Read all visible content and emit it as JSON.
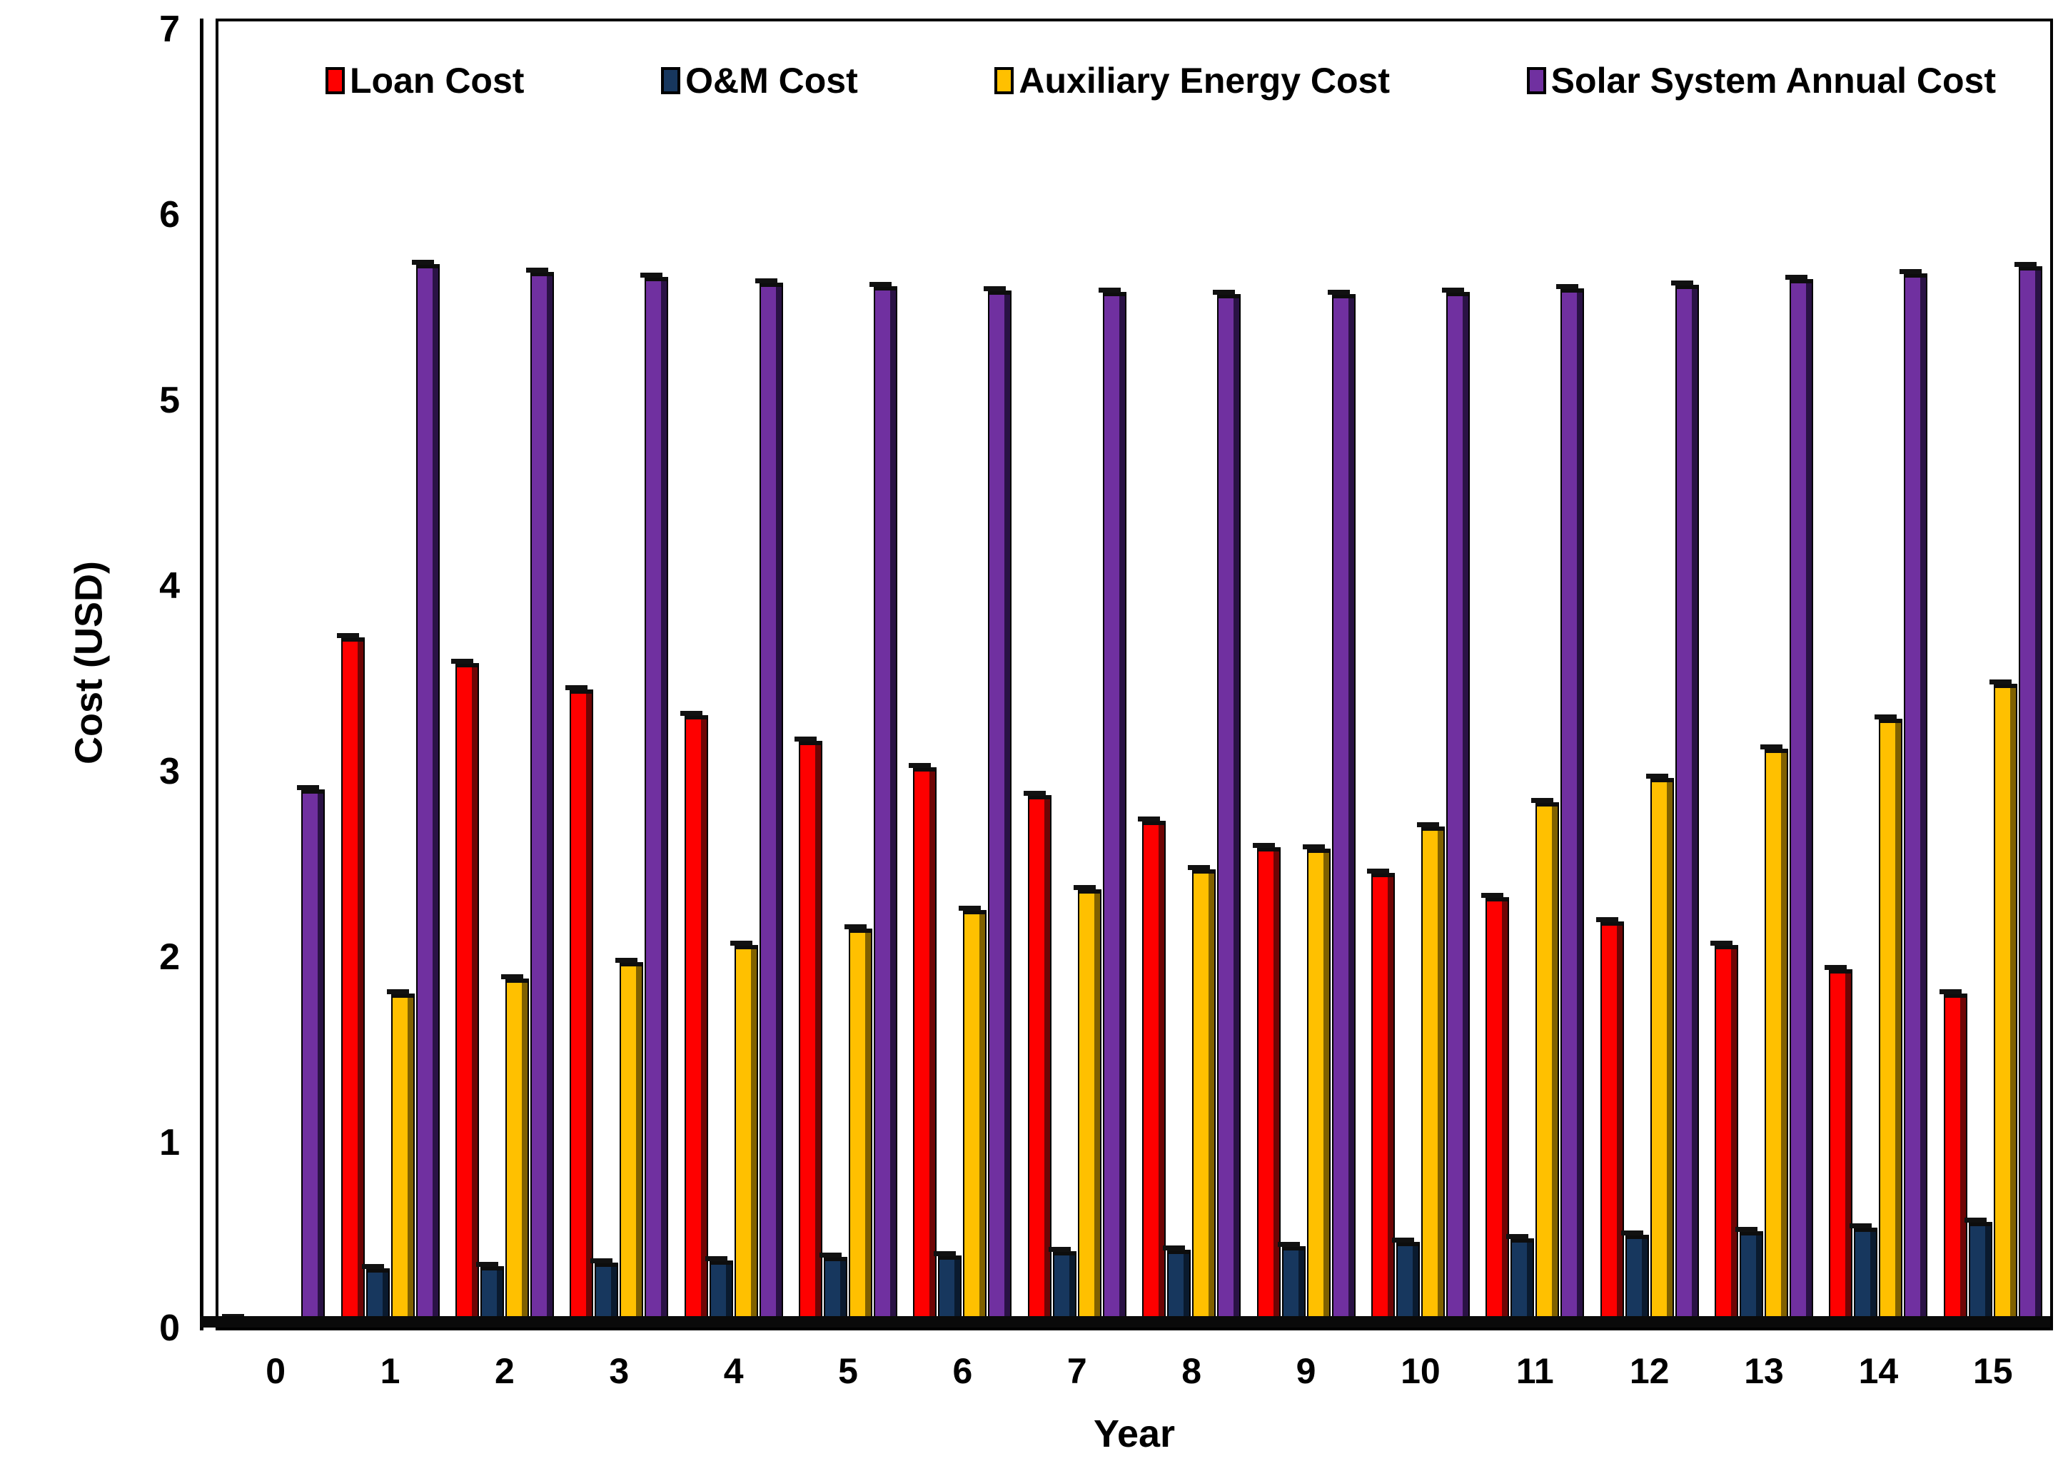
{
  "chart_data": {
    "type": "bar",
    "title": "",
    "xlabel": "Year",
    "ylabel": "Cost (USD)",
    "ylim": [
      0,
      7
    ],
    "yticks": [
      0,
      1,
      2,
      3,
      4,
      5,
      6,
      7
    ],
    "grid": "off",
    "legend_position": "top-inside",
    "categories": [
      "0",
      "1",
      "2",
      "3",
      "4",
      "5",
      "6",
      "7",
      "8",
      "9",
      "10",
      "11",
      "12",
      "13",
      "14",
      "15"
    ],
    "series": [
      {
        "name": "Loan Cost",
        "color": "#fe0000",
        "dark_side_color": "#6e0505",
        "values": [
          0.05,
          3.72,
          3.58,
          3.44,
          3.3,
          3.16,
          3.02,
          2.87,
          2.73,
          2.59,
          2.45,
          2.32,
          2.19,
          2.06,
          1.93,
          1.8
        ]
      },
      {
        "name": "O&M Cost",
        "color": "#17375e",
        "dark_side_color": "#0a1a2e",
        "values": [
          0.03,
          0.32,
          0.33,
          0.35,
          0.36,
          0.38,
          0.39,
          0.41,
          0.42,
          0.44,
          0.46,
          0.48,
          0.5,
          0.52,
          0.54,
          0.57
        ]
      },
      {
        "name": "Auxiliary Energy Cost",
        "color": "#ffc000",
        "dark_side_color": "#7f6000",
        "values": [
          0.04,
          1.8,
          1.88,
          1.97,
          2.06,
          2.15,
          2.25,
          2.36,
          2.47,
          2.58,
          2.7,
          2.83,
          2.96,
          3.12,
          3.28,
          3.47
        ]
      },
      {
        "name": "Solar System Annual Cost",
        "color": "#7030a0",
        "dark_side_color": "#2a1245",
        "values": [
          2.9,
          5.73,
          5.69,
          5.66,
          5.63,
          5.61,
          5.59,
          5.58,
          5.57,
          5.57,
          5.58,
          5.6,
          5.62,
          5.65,
          5.68,
          5.72
        ]
      }
    ],
    "axis_color": "#000000",
    "plot_background": "#ffffff",
    "pixels_per_unit": 260
  }
}
